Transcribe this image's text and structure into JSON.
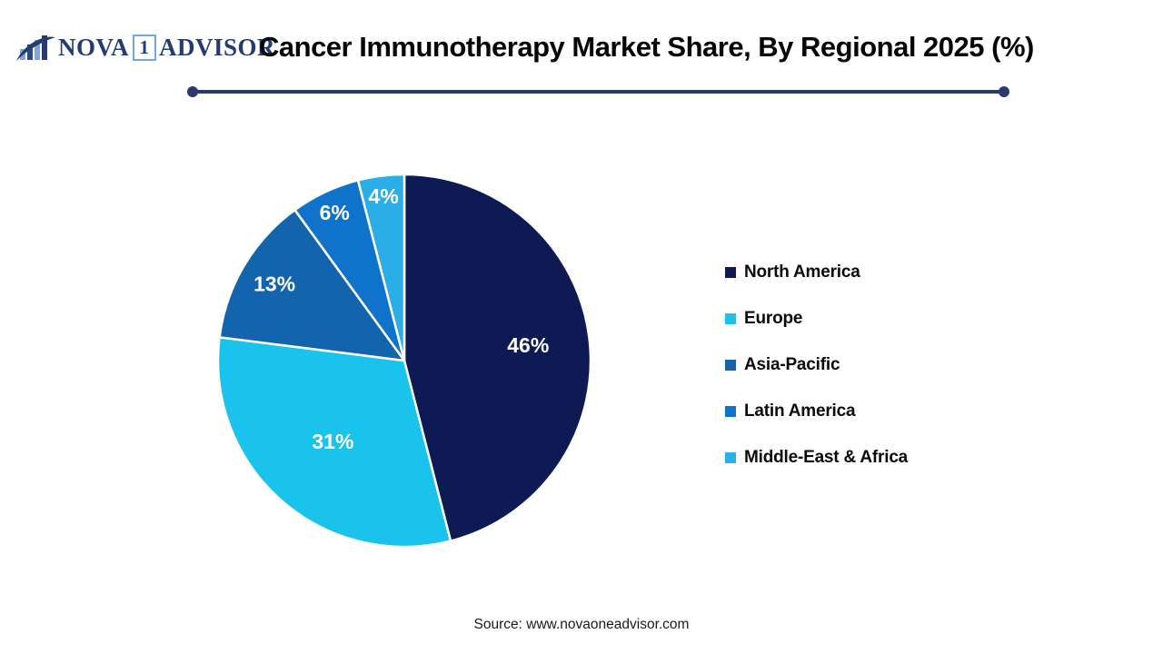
{
  "logo": {
    "icon": "bar-chart-swoosh-icon",
    "part1": "NOVA",
    "part2": "1",
    "part3": "ADVISOR",
    "navy": "#243C72",
    "light_blue": "#7EA6D8",
    "box_border": "#6FA8DC"
  },
  "header": {
    "title": "Cancer Immunotherapy Market Share, By Regional 2025 (%)"
  },
  "divider_color": "#2B3A6B",
  "chart_data": {
    "type": "pie",
    "title": "Cancer Immunotherapy Market Share, By Regional 2025 (%)",
    "categories": [
      "North America",
      "Europe",
      "Asia-Pacific",
      "Latin America",
      "Middle-East & Africa"
    ],
    "values": [
      46,
      31,
      13,
      6,
      4
    ],
    "data_labels": [
      "46%",
      "31%",
      "13%",
      "6%",
      "4%"
    ],
    "colors": [
      "#0E1A53",
      "#19C3EB",
      "#1264AD",
      "#0F73CB",
      "#2BADE8"
    ],
    "start_angle_deg": 0,
    "direction": "clockwise",
    "legend_position": "right",
    "slice_border_color": "#ffffff",
    "label_color": "#ffffff",
    "label_radius_fractions": [
      0.67,
      0.58,
      0.81,
      0.88,
      0.89
    ]
  },
  "source": {
    "text": "Source: www.novaoneadvisor.com"
  }
}
